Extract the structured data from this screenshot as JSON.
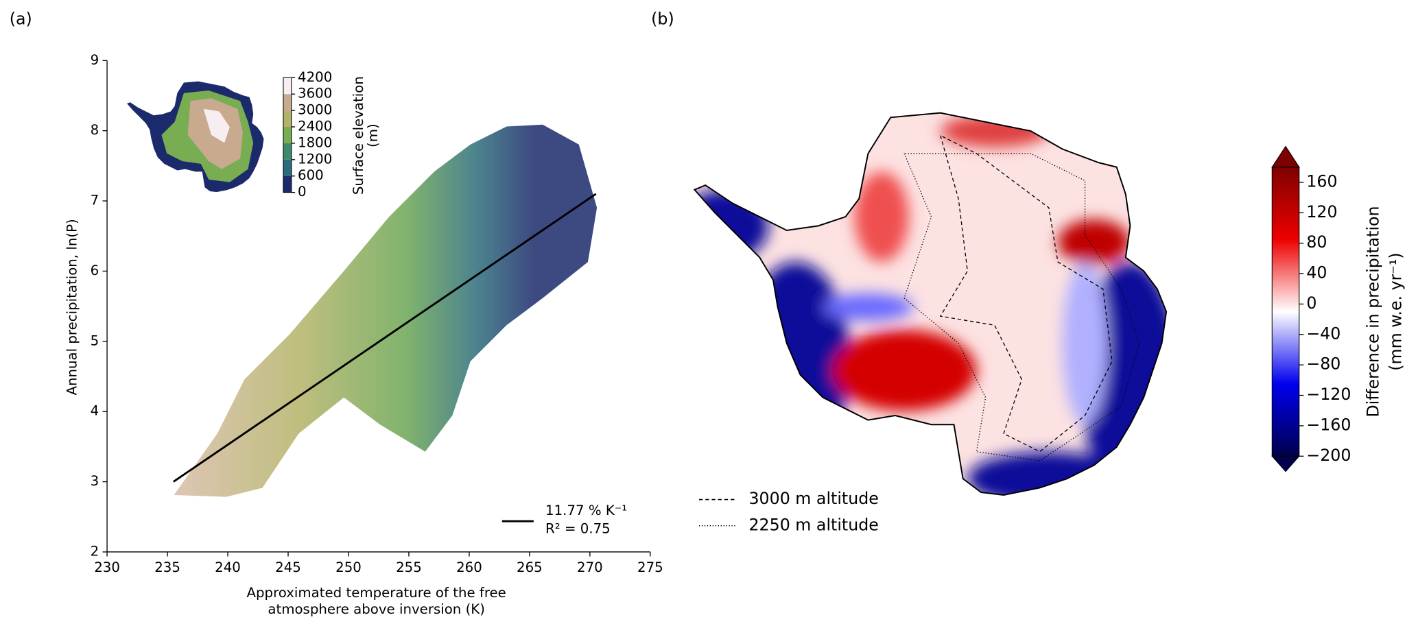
{
  "chart_data": [
    {
      "type": "scatter",
      "panel_label": "(a)",
      "x_label": [
        "Approximated temperature of the free",
        "atmosphere above inversion (K)"
      ],
      "y_label": "Annual precipitation, ln(P)",
      "xlim": [
        230,
        275
      ],
      "xticks": [
        230,
        235,
        240,
        245,
        250,
        255,
        260,
        265,
        270,
        275
      ],
      "ylim": [
        2,
        9
      ],
      "yticks": [
        2,
        3,
        4,
        5,
        6,
        7,
        8,
        9
      ],
      "fit": {
        "name": [
          "11.77 % K⁻¹",
          "R² = 0.75"
        ],
        "x": [
          235.5,
          270.5
        ],
        "y": [
          3.0,
          7.1
        ],
        "color": "#000000"
      },
      "inset_colorbar": {
        "label": [
          "Surface elevation",
          "(m)"
        ],
        "lim": [
          0,
          4200
        ],
        "ticks": [
          0,
          600,
          1200,
          1800,
          2400,
          3000,
          3600,
          4200
        ],
        "colors": [
          "#1b2a6b",
          "#2b6b7b",
          "#3c8c6c",
          "#79ad52",
          "#b3b367",
          "#c9aa8e",
          "#f6eef0"
        ]
      }
    },
    {
      "type": "map",
      "panel_label": "(b)",
      "colorbar": {
        "label": [
          "Difference in precipitation",
          "(mm w.e. yr⁻¹)"
        ],
        "lim": [
          -200,
          180
        ],
        "ticks": [
          {
            "value": -200,
            "label": "−200"
          },
          {
            "value": -160,
            "label": "−160"
          },
          {
            "value": -120,
            "label": "−120"
          },
          {
            "value": -80,
            "label": "−80"
          },
          {
            "value": -40,
            "label": "−40"
          },
          0,
          40,
          80,
          120,
          160
        ],
        "colors": [
          "#00004c",
          "#0000ee",
          "#ffffff",
          "#ee0000",
          "#7f0000"
        ]
      },
      "legend": [
        {
          "name": "3000 m altitude",
          "dash": "dashed"
        },
        {
          "name": "2250 m altitude",
          "dash": "dotted"
        }
      ]
    }
  ]
}
